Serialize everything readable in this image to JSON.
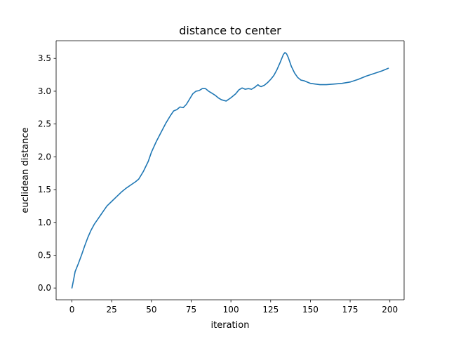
{
  "chart_data": {
    "type": "line",
    "title": "distance to center",
    "xlabel": "iteration",
    "ylabel": "euclidean distance",
    "xlim": [
      -9.95,
      208.95
    ],
    "ylim": [
      -0.18,
      3.77
    ],
    "xticks": [
      0,
      25,
      50,
      75,
      100,
      125,
      150,
      175,
      200
    ],
    "xtick_labels": [
      "0",
      "25",
      "50",
      "75",
      "100",
      "125",
      "150",
      "175",
      "200"
    ],
    "yticks": [
      0.0,
      0.5,
      1.0,
      1.5,
      2.0,
      2.5,
      3.0,
      3.5
    ],
    "ytick_labels": [
      "0.0",
      "0.5",
      "1.0",
      "1.5",
      "2.0",
      "2.5",
      "3.0",
      "3.5"
    ],
    "grid": false,
    "series": [
      {
        "color": "#1f77b4",
        "x": [
          0,
          1,
          2,
          4,
          6,
          8,
          10,
          12,
          14,
          16,
          18,
          20,
          22,
          25,
          28,
          31,
          34,
          37,
          40,
          42,
          45,
          48,
          50,
          53,
          56,
          59,
          62,
          64,
          66,
          68,
          70,
          72,
          74,
          76,
          78,
          80,
          82,
          84,
          86,
          88,
          90,
          92,
          94,
          97,
          100,
          103,
          105,
          107,
          109,
          111,
          113,
          115,
          117,
          118,
          119,
          121,
          123,
          125,
          127,
          129,
          131,
          133,
          134,
          135,
          136,
          137,
          138,
          140,
          142,
          144,
          146,
          148,
          150,
          153,
          156,
          160,
          165,
          170,
          175,
          180,
          185,
          190,
          195,
          199
        ],
        "y": [
          0.0,
          0.12,
          0.25,
          0.37,
          0.5,
          0.64,
          0.77,
          0.88,
          0.97,
          1.04,
          1.11,
          1.18,
          1.25,
          1.32,
          1.39,
          1.46,
          1.52,
          1.57,
          1.62,
          1.66,
          1.78,
          1.93,
          2.07,
          2.23,
          2.37,
          2.51,
          2.63,
          2.7,
          2.72,
          2.76,
          2.75,
          2.8,
          2.88,
          2.96,
          3.0,
          3.01,
          3.04,
          3.04,
          3.0,
          2.97,
          2.94,
          2.9,
          2.87,
          2.85,
          2.9,
          2.96,
          3.02,
          3.05,
          3.03,
          3.04,
          3.03,
          3.06,
          3.1,
          3.08,
          3.07,
          3.09,
          3.13,
          3.18,
          3.24,
          3.33,
          3.44,
          3.56,
          3.59,
          3.57,
          3.52,
          3.45,
          3.38,
          3.28,
          3.21,
          3.17,
          3.16,
          3.14,
          3.12,
          3.11,
          3.1,
          3.1,
          3.11,
          3.12,
          3.14,
          3.18,
          3.23,
          3.27,
          3.31,
          3.35
        ]
      }
    ]
  }
}
